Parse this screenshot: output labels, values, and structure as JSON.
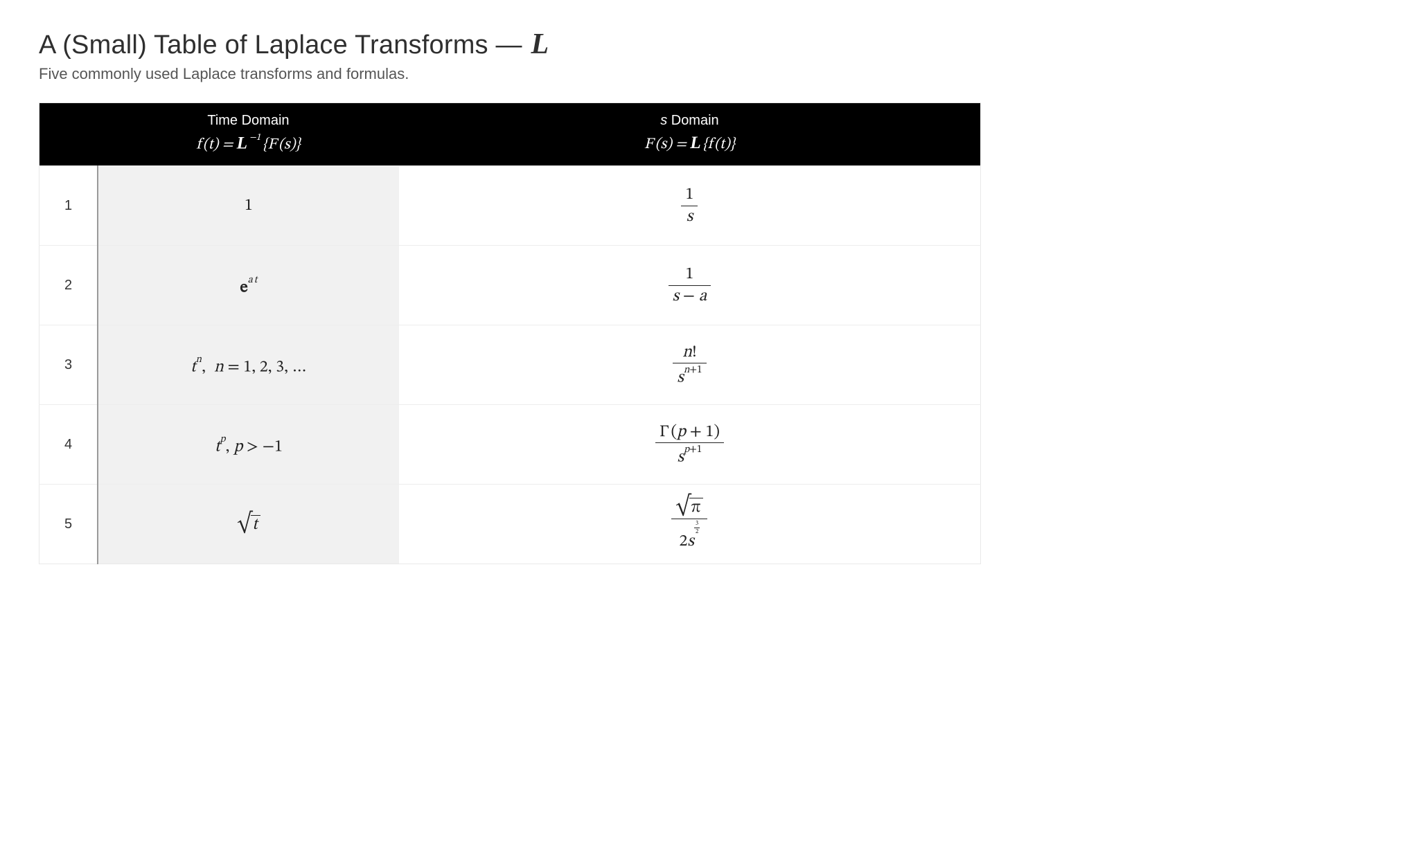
{
  "page": {
    "title_prefix": "A (Small) Table of Laplace Transforms — ",
    "title_symbol": "L",
    "subtitle": "Five commonly used Laplace transforms and formulas."
  },
  "table": {
    "type": "table",
    "background_color": "#ffffff",
    "header_bg": "#000000",
    "header_fg": "#ffffff",
    "row_border_color": "#ededed",
    "shaded_column_bg": "#f1f1f1",
    "index_divider_color": "#9a9a9a",
    "title_fontsize_pt": 28,
    "subtitle_fontsize_pt": 16,
    "header_fontsize_pt": 15,
    "cell_fontsize_pt": 18,
    "columns": [
      {
        "key": "index",
        "label_line1": "",
        "label_line2": "",
        "width_pct": 5,
        "align": "center"
      },
      {
        "key": "time_domain",
        "label_line1": "Time Domain",
        "label_line2": "f (t) = ℒ⁻¹{F (s)}",
        "width_pct": 32,
        "align": "center",
        "shaded": true
      },
      {
        "key": "s_domain",
        "label_line1": "s Domain",
        "label_line2": "F (s) = ℒ{f (t)}",
        "width_pct": 63,
        "align": "center"
      }
    ],
    "rows": [
      {
        "index": "1",
        "time_tex": "1",
        "s_tex": "1 / s",
        "render": {
          "time_html_key": "render_html.row1_time",
          "s_html_key": "render_html.row1_s"
        }
      },
      {
        "index": "2",
        "time_tex": "e^{a t}",
        "s_tex": "1 / (s − a)",
        "render": {
          "time_html_key": "render_html.row2_time",
          "s_html_key": "render_html.row2_s"
        }
      },
      {
        "index": "3",
        "time_tex": "t^{n},  n = 1, 2, 3, …",
        "s_tex": "n! / s^{n+1}",
        "render": {
          "time_html_key": "render_html.row3_time",
          "s_html_key": "render_html.row3_s"
        }
      },
      {
        "index": "4",
        "time_tex": "t^{p}, p > −1",
        "s_tex": "Γ(p + 1) / s^{p+1}",
        "render": {
          "time_html_key": "render_html.row4_time",
          "s_html_key": "render_html.row4_s"
        }
      },
      {
        "index": "5",
        "time_tex": "√t",
        "s_tex": "√π / (2 s^{3/2})",
        "render": {
          "time_html_key": "render_html.row5_time",
          "s_html_key": "render_html.row5_s"
        }
      }
    ]
  },
  "render_html": {
    "header_time_l1": "Time Domain",
    "header_time_l2": "<span class='mi'>f</span>&thinsp;(<span class='mi'>t</span>) = <span class='scriptL'>L</span>&thinsp;<span class='sup'>&minus;1</span>&thinsp;{<span class='mi'>F</span>&thinsp;(<span class='mi'>s</span>)}",
    "header_s_l1": "<span class='mi'>s</span> Domain",
    "header_s_l2": "<span class='mi'>F</span>&thinsp;(<span class='mi'>s</span>) = <span class='scriptL'>L</span>&thinsp;{<span class='mi'>f</span>&thinsp;(<span class='mi'>t</span>)}",
    "row1_time": "<span class='rm'>1</span>",
    "row1_s": "<span class='frac'><span class='num rm'>1</span><span class='den mi'>s</span></span>",
    "row2_time": "<span class='e-bold'>e</span><span class='sup'><span class='mi'>a</span>&thinsp;<span class='mi'>t</span></span>",
    "row2_s": "<span class='frac'><span class='num rm'>1</span><span class='den'><span class='mi'>s</span> <span class='rm'>&minus;</span> <span class='mi'>a</span></span></span>",
    "row3_time": "<span class='mi'>t</span><span class='sup'>n</span><span class='rm'>,</span><span class='spaced'></span><span class='mi'>n</span> <span class='rm'>=</span> <span class='rm'>1, 2, 3, &hellip;</span>",
    "row3_s": "<span class='frac'><span class='num'><span class='mi'>n</span><span class='rm'>!</span></span><span class='den'><span class='mi'>s</span><span class='sup'><span class='mi'>n</span><span class='rm'>+1</span></span></span></span>",
    "row4_time": "<span class='mi'>t</span><span class='sup'>p</span><span class='rm'>,</span><span class='thin'></span><span class='mi'>p</span> <span class='rm'>&gt;</span> <span class='rm'>&minus;1</span>",
    "row4_s": "<span class='frac'><span class='num'><span class='rm'>&Gamma;&thinsp;(</span><span class='mi'>p</span> <span class='rm'>+ 1)</span></span><span class='den'><span class='mi'>s</span><span class='sup'><span class='mi'>p</span><span class='rm'>+1</span></span></span></span>",
    "row5_time": "<span class='sqrt'><span class='surd'>&radic;</span><span class='radicand mi'>t</span></span>",
    "row5_s": "<span class='frac'><span class='num'><span class='sqrt'><span class='surd'>&radic;</span><span class='radicand mi' style='font-style:normal'>&pi;</span></span></span><span class='den'><span class='rm'>2</span><span class='mi'>s</span><span class='sup'><span class='frac small'><span class='num rm'>3</span><span class='den rm'>2</span></span></span></span></span>"
  }
}
